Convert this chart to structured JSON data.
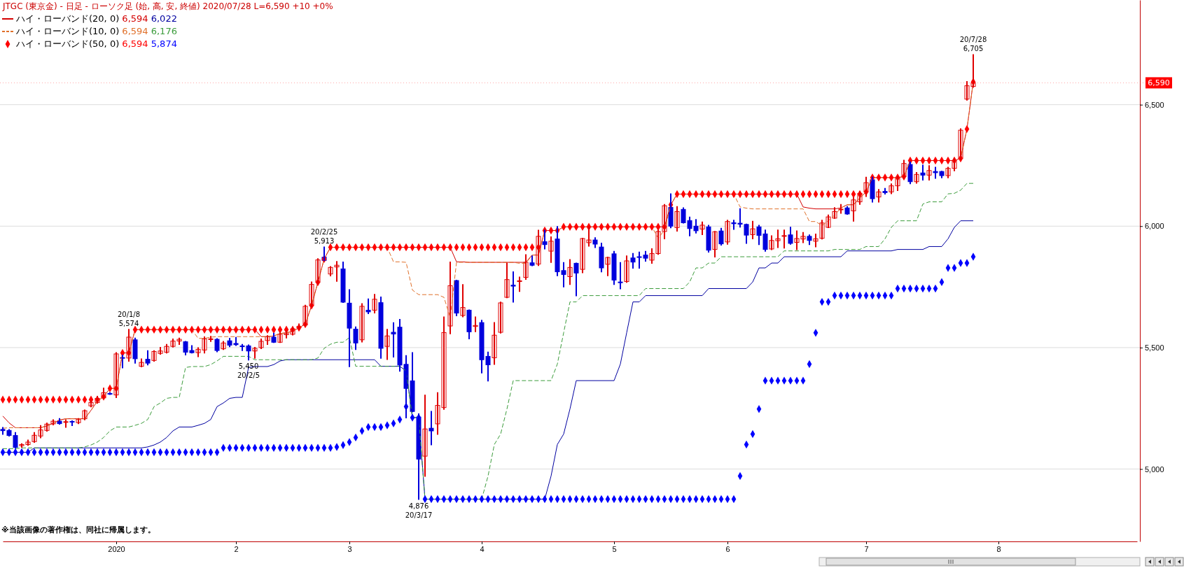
{
  "chart_data": {
    "type": "candlestick",
    "title": "JTGC (東京金) - 日足 - ローソク足 (始, 高, 安, 終値)  2020/07/28 L=6,590 +10  +0%",
    "categories": [
      null,
      null,
      null,
      null,
      null,
      null,
      null,
      null,
      null,
      null,
      null,
      null,
      null,
      null,
      null,
      null,
      null,
      null,
      "2020",
      null,
      null,
      null,
      null,
      null,
      null,
      null,
      null,
      null,
      null,
      null,
      null,
      null,
      null,
      null,
      null,
      null,
      null,
      "2",
      null,
      null,
      null,
      null,
      null,
      null,
      null,
      null,
      null,
      null,
      null,
      null,
      null,
      null,
      null,
      null,
      null,
      "3",
      null,
      null,
      null,
      null,
      null,
      null,
      null,
      null,
      null,
      null,
      null,
      null,
      null,
      null,
      null,
      null,
      null,
      null,
      null,
      null,
      "4",
      null,
      null,
      null,
      null,
      null,
      null,
      null,
      null,
      null,
      null,
      null,
      null,
      null,
      null,
      null,
      null,
      null,
      null,
      null,
      null,
      "5",
      null,
      null,
      null,
      null,
      null,
      null,
      null,
      null,
      null,
      null,
      null,
      null,
      null,
      null,
      null,
      null,
      null,
      "6",
      null,
      null,
      null,
      null,
      null,
      null,
      null,
      null,
      null,
      null,
      null,
      null,
      null,
      null,
      null,
      null,
      null,
      null,
      null,
      null,
      null,
      "7",
      null,
      null,
      null,
      null,
      null,
      null,
      null,
      null,
      null,
      null,
      null,
      null,
      null,
      null,
      null,
      null,
      null,
      null,
      null,
      null,
      "8",
      null,
      null,
      null,
      null,
      null,
      null,
      null,
      null,
      null,
      null,
      null,
      null,
      null,
      null,
      null,
      null,
      null,
      null,
      null,
      null,
      null,
      null
    ],
    "ohlc": [
      [
        5163,
        5170,
        5144,
        5158
      ],
      [
        5159,
        5161,
        5137,
        5138
      ],
      [
        5138,
        5149,
        5087,
        5089
      ],
      [
        5096,
        5103,
        5091,
        5101
      ],
      [
        5101,
        5118,
        5099,
        5111
      ],
      [
        5113,
        5149,
        5111,
        5139
      ],
      [
        5136,
        5178,
        5130,
        5161
      ],
      [
        5159,
        5188,
        5157,
        5185
      ],
      [
        5186,
        5202,
        5183,
        5197
      ],
      [
        5197,
        5207,
        5186,
        5187
      ],
      [
        5193,
        5202,
        5173,
        5195
      ],
      [
        5196,
        5197,
        5180,
        5195
      ],
      [
        5191,
        5207,
        5188,
        5205
      ],
      [
        5207,
        5242,
        5204,
        5240
      ],
      [
        5260,
        5279,
        5257,
        5274
      ],
      [
        5274,
        5298,
        5272,
        5291
      ],
      [
        5293,
        5332,
        5291,
        5314
      ],
      [
        5311,
        5313,
        5308,
        5309
      ],
      [
        5305,
        5478,
        5295,
        5474
      ],
      [
        5459,
        5468,
        5418,
        5456
      ],
      [
        5457,
        5574,
        5445,
        5543
      ],
      [
        5532,
        5538,
        5437,
        5454
      ],
      [
        5423,
        5452,
        5422,
        5439
      ],
      [
        5452,
        5486,
        5430,
        5436
      ],
      [
        5447,
        5486,
        5445,
        5484
      ],
      [
        5476,
        5500,
        5474,
        5486
      ],
      [
        5481,
        5512,
        5479,
        5505
      ],
      [
        5505,
        5534,
        5503,
        5527
      ],
      [
        5527,
        5538,
        5514,
        5534
      ],
      [
        5524,
        5524,
        5471,
        5481
      ],
      [
        5488,
        5507,
        5479,
        5479
      ],
      [
        5479,
        5498,
        5464,
        5493
      ],
      [
        5490,
        5543,
        5479,
        5536
      ],
      [
        5534,
        5545,
        5526,
        5536
      ],
      [
        5534,
        5536,
        5484,
        5488
      ],
      [
        5495,
        5524,
        5493,
        5519
      ],
      [
        5528,
        5537,
        5505,
        5510
      ],
      [
        5517,
        5541,
        5510,
        5512
      ],
      [
        5507,
        5512,
        5489,
        5505
      ],
      [
        5507,
        5510,
        5450,
        5486
      ],
      [
        5486,
        5500,
        5457,
        5497
      ],
      [
        5500,
        5534,
        5497,
        5526
      ],
      [
        5529,
        5548,
        5514,
        5545
      ],
      [
        5543,
        5558,
        5522,
        5522
      ],
      [
        5522,
        5561,
        5522,
        5555
      ],
      [
        5553,
        5567,
        5541,
        5558
      ],
      [
        5555,
        5582,
        5553,
        5577
      ],
      [
        5582,
        5596,
        5577,
        5587
      ],
      [
        5593,
        5673,
        5591,
        5670
      ],
      [
        5673,
        5769,
        5668,
        5760
      ],
      [
        5769,
        5865,
        5764,
        5861
      ],
      [
        5872,
        5913,
        5859,
        5859
      ],
      [
        5803,
        5832,
        5796,
        5830
      ],
      [
        5832,
        5853,
        5774,
        5839
      ],
      [
        5824,
        5851,
        5687,
        5687
      ],
      [
        5683,
        5737,
        5423,
        5580
      ],
      [
        5576,
        5584,
        5493,
        5519
      ],
      [
        5532,
        5680,
        5524,
        5670
      ],
      [
        5654,
        5699,
        5641,
        5647
      ],
      [
        5654,
        5718,
        5644,
        5699
      ],
      [
        5685,
        5707,
        5457,
        5497
      ],
      [
        5505,
        5574,
        5452,
        5548
      ],
      [
        5563,
        5601,
        5462,
        5556
      ],
      [
        5584,
        5615,
        5404,
        5428
      ],
      [
        5431,
        5466,
        5212,
        5332
      ],
      [
        5363,
        5478,
        5237,
        5237
      ],
      [
        5214,
        5226,
        4876,
        5041
      ],
      [
        5053,
        5303,
        4971,
        5165
      ],
      [
        5168,
        5236,
        5101,
        5157
      ],
      [
        5186,
        5313,
        5144,
        5262
      ],
      [
        5253,
        5625,
        5247,
        5562
      ],
      [
        5589,
        5851,
        5558,
        5755
      ],
      [
        5776,
        5776,
        5632,
        5642
      ],
      [
        5632,
        5758,
        5628,
        5665
      ],
      [
        5654,
        5654,
        5537,
        5565
      ],
      [
        5587,
        5625,
        5567,
        5591
      ],
      [
        5603,
        5611,
        5397,
        5450
      ],
      [
        5464,
        5480,
        5364,
        5429
      ],
      [
        5458,
        5602,
        5432,
        5551
      ],
      [
        5563,
        5686,
        5561,
        5684
      ],
      [
        5707,
        5847,
        5706,
        5780
      ],
      [
        5757,
        5811,
        5688,
        5753
      ],
      [
        5772,
        5789,
        5732,
        5775
      ],
      [
        5789,
        5881,
        5782,
        5851
      ],
      [
        5849,
        5876,
        5838,
        5839
      ],
      [
        5844,
        5982,
        5839,
        5958
      ],
      [
        5936,
        5982,
        5907,
        5924
      ],
      [
        5897,
        5955,
        5852,
        5938
      ],
      [
        5947,
        5997,
        5797,
        5812
      ],
      [
        5817,
        5849,
        5751,
        5801
      ],
      [
        5792,
        5861,
        5761,
        5830
      ],
      [
        5847,
        5847,
        5714,
        5807
      ],
      [
        5822,
        5949,
        5809,
        5949
      ],
      [
        5932,
        5997,
        5919,
        5943
      ],
      [
        5943,
        5951,
        5913,
        5926
      ],
      [
        5914,
        5929,
        5813,
        5828
      ],
      [
        5843,
        5871,
        5797,
        5871
      ],
      [
        5886,
        5895,
        5761,
        5778
      ],
      [
        5770,
        5849,
        5743,
        5768
      ],
      [
        5772,
        5876,
        5770,
        5857
      ],
      [
        5869,
        5886,
        5828,
        5852
      ],
      [
        5874,
        5892,
        5828,
        5872
      ],
      [
        5881,
        5895,
        5857,
        5868
      ],
      [
        5860,
        5906,
        5848,
        5887
      ],
      [
        5887,
        5983,
        5885,
        5978
      ],
      [
        5978,
        6088,
        5949,
        6084
      ],
      [
        6077,
        6132,
        5994,
        6000
      ],
      [
        5994,
        6079,
        5981,
        6060
      ],
      [
        6069,
        6074,
        6014,
        6014
      ],
      [
        6023,
        6036,
        5961,
        5990
      ],
      [
        6000,
        6026,
        5973,
        5981
      ],
      [
        5988,
        6016,
        5966,
        6004
      ],
      [
        5997,
        6002,
        5894,
        5901
      ],
      [
        5904,
        5977,
        5874,
        5977
      ],
      [
        5980,
        5990,
        5923,
        5927
      ],
      [
        5935,
        6023,
        5927,
        6019
      ],
      [
        6014,
        6023,
        5988,
        6010
      ],
      [
        6012,
        6071,
        5997,
        6008
      ],
      [
        6007,
        6007,
        5930,
        5963
      ],
      [
        5965,
        6019,
        5949,
        5989
      ],
      [
        5997,
        6002,
        5925,
        5962
      ],
      [
        5968,
        5983,
        5898,
        5904
      ],
      [
        5906,
        5959,
        5904,
        5941
      ],
      [
        5940,
        5983,
        5913,
        5948
      ],
      [
        5958,
        5983,
        5911,
        5961
      ],
      [
        5964,
        5994,
        5927,
        5929
      ],
      [
        5933,
        5979,
        5904,
        5949
      ],
      [
        5947,
        5973,
        5933,
        5958
      ],
      [
        5958,
        5963,
        5925,
        5941
      ],
      [
        5938,
        5966,
        5916,
        5948
      ],
      [
        5950,
        6023,
        5948,
        6013
      ],
      [
        5995,
        6045,
        5995,
        6038
      ],
      [
        6033,
        6075,
        6033,
        6060
      ],
      [
        6068,
        6088,
        6054,
        6070
      ],
      [
        6075,
        6079,
        6050,
        6050
      ],
      [
        6063,
        6116,
        6022,
        6108
      ],
      [
        6100,
        6141,
        6091,
        6135
      ],
      [
        6141,
        6200,
        6123,
        6179
      ],
      [
        6191,
        6200,
        6100,
        6113
      ],
      [
        6120,
        6150,
        6100,
        6141
      ],
      [
        6143,
        6154,
        6133,
        6138
      ],
      [
        6141,
        6173,
        6135,
        6166
      ],
      [
        6166,
        6204,
        6148,
        6198
      ],
      [
        6204,
        6270,
        6198,
        6258
      ],
      [
        6254,
        6263,
        6176,
        6183
      ],
      [
        6183,
        6220,
        6178,
        6213
      ],
      [
        6219,
        6250,
        6191,
        6210
      ],
      [
        6210,
        6248,
        6191,
        6229
      ],
      [
        6225,
        6241,
        6198,
        6220
      ],
      [
        6225,
        6225,
        6200,
        6208
      ],
      [
        6208,
        6241,
        6200,
        6238
      ],
      [
        6238,
        6279,
        6229,
        6270
      ],
      [
        6279,
        6400,
        6275,
        6395
      ],
      [
        6523,
        6594,
        6520,
        6578
      ],
      [
        6575,
        6705,
        6573,
        6590
      ],
      null,
      null,
      null,
      null,
      null,
      null,
      null,
      null,
      null,
      null,
      null,
      null,
      null,
      null,
      null,
      null,
      null,
      null,
      null,
      null,
      null,
      null,
      null,
      null,
      null,
      null
    ],
    "series": [
      {
        "name": "ハイ・ローバンド(20, 0)",
        "type": "line",
        "line_style": "solid",
        "color": "#d40000",
        "values": [
          5218,
          5190,
          5170,
          5170,
          5170,
          5170,
          5170,
          5178,
          5188,
          5202,
          5207,
          5207,
          5207,
          5207,
          5242,
          5279,
          5298,
          5332,
          5332,
          5478,
          5478,
          5574,
          5574,
          5574,
          5574,
          5574,
          5574,
          5574,
          5574,
          5574,
          5574,
          5574,
          5574,
          5574,
          5574,
          5574,
          5574,
          5574,
          5574,
          5574,
          5574,
          5545,
          5545,
          5548,
          5558,
          5561,
          5567,
          5582,
          5596,
          5673,
          5769,
          5865,
          5913,
          5913,
          5913,
          5913,
          5913,
          5913,
          5913,
          5913,
          5913,
          5913,
          5913,
          5913,
          5913,
          5913,
          5913,
          5913,
          5913,
          5913,
          5913,
          5913,
          5853,
          5853,
          5851,
          5851,
          5851,
          5851,
          5851,
          5851,
          5851,
          5851,
          5851,
          5851,
          5881,
          5881,
          5982,
          5982,
          5982,
          5997,
          5997,
          5997,
          5997,
          5997,
          5997,
          5997,
          5997,
          5997,
          5997,
          5997,
          5997,
          5997,
          5997,
          5997,
          5997,
          5997,
          6088,
          6132,
          6132,
          6132,
          6132,
          6132,
          6132,
          6132,
          6132,
          6132,
          6132,
          6132,
          6132,
          6132,
          6132,
          6132,
          6132,
          6132,
          6132,
          6132,
          6132,
          6079,
          6074,
          6071,
          6071,
          6071,
          6071,
          6075,
          6088,
          6088,
          6116,
          6141,
          6200,
          6200,
          6200,
          6200,
          6200,
          6204,
          6270,
          6270,
          6270,
          6270,
          6270,
          6270,
          6270,
          6270,
          6279,
          6400,
          6594,
          null,
          null,
          null,
          null,
          null,
          null,
          null,
          null,
          null,
          null,
          null,
          null,
          null,
          null,
          null,
          null,
          null,
          null,
          null,
          null,
          null,
          null,
          null,
          null,
          null,
          null
        ]
      },
      {
        "type": "line",
        "line_style": "solid",
        "color": "#0000a0",
        "values": [
          5069,
          5069,
          5069,
          5069,
          5069,
          5087,
          5087,
          5087,
          5087,
          5087,
          5087,
          5087,
          5087,
          5087,
          5087,
          5087,
          5087,
          5087,
          5087,
          5087,
          5087,
          5087,
          5087,
          5091,
          5099,
          5111,
          5130,
          5157,
          5173,
          5173,
          5173,
          5180,
          5188,
          5204,
          5257,
          5272,
          5291,
          5295,
          5295,
          5418,
          5422,
          5422,
          5422,
          5430,
          5445,
          5450,
          5450,
          5450,
          5450,
          5450,
          5450,
          5450,
          5450,
          5450,
          5450,
          5450,
          5450,
          5450,
          5450,
          5450,
          5423,
          5423,
          5423,
          5423,
          5404,
          5212,
          5212,
          4876,
          4876,
          4876,
          4876,
          4876,
          4876,
          4876,
          4876,
          4876,
          4876,
          4876,
          4876,
          4876,
          4876,
          4876,
          4876,
          4876,
          4876,
          4876,
          4876,
          4971,
          5101,
          5144,
          5247,
          5364,
          5364,
          5364,
          5364,
          5364,
          5364,
          5364,
          5432,
          5561,
          5688,
          5688,
          5714,
          5714,
          5714,
          5714,
          5714,
          5714,
          5714,
          5714,
          5714,
          5714,
          5743,
          5743,
          5743,
          5743,
          5743,
          5743,
          5743,
          5770,
          5828,
          5828,
          5848,
          5848,
          5874,
          5874,
          5874,
          5874,
          5874,
          5874,
          5874,
          5874,
          5874,
          5874,
          5898,
          5898,
          5898,
          5898,
          5898,
          5898,
          5898,
          5898,
          5904,
          5904,
          5904,
          5904,
          5904,
          5916,
          5916,
          5916,
          5948,
          5995,
          6022,
          6022,
          6022,
          null,
          null,
          null,
          null,
          null,
          null,
          null,
          null,
          null,
          null,
          null,
          null,
          null,
          null,
          null,
          null,
          null,
          null,
          null,
          null,
          null,
          null,
          null,
          null,
          null,
          null
        ]
      },
      {
        "name": "ハイ・ローバンド(10, 0)",
        "type": "line",
        "line_style": "dashed",
        "color": "#e0702a",
        "values": [
          5168,
          5170,
          5170,
          5170,
          5170,
          5170,
          5170,
          5178,
          5188,
          5202,
          5207,
          5207,
          5207,
          5207,
          5242,
          5279,
          5298,
          5332,
          5332,
          5478,
          5478,
          5574,
          5574,
          5574,
          5574,
          5574,
          5574,
          5574,
          5574,
          5574,
          5574,
          5538,
          5538,
          5543,
          5545,
          5545,
          5545,
          5545,
          5545,
          5545,
          5545,
          5545,
          5545,
          5548,
          5558,
          5561,
          5567,
          5582,
          5596,
          5673,
          5769,
          5865,
          5913,
          5913,
          5913,
          5913,
          5913,
          5913,
          5913,
          5913,
          5913,
          5913,
          5853,
          5853,
          5851,
          5737,
          5718,
          5718,
          5718,
          5718,
          5707,
          5625,
          5851,
          5851,
          5851,
          5851,
          5851,
          5851,
          5851,
          5851,
          5851,
          5851,
          5847,
          5847,
          5881,
          5881,
          5982,
          5982,
          5982,
          5997,
          5997,
          5997,
          5997,
          5997,
          5997,
          5997,
          5997,
          5997,
          5997,
          5997,
          5997,
          5997,
          5997,
          5997,
          5951,
          5983,
          6088,
          6132,
          6132,
          6132,
          6132,
          6132,
          6132,
          6132,
          6132,
          6132,
          6132,
          6079,
          6074,
          6071,
          6071,
          6071,
          6071,
          6071,
          6071,
          6071,
          6071,
          6071,
          6019,
          6019,
          6002,
          6023,
          6045,
          6075,
          6088,
          6088,
          6116,
          6141,
          6200,
          6200,
          6200,
          6200,
          6200,
          6204,
          6270,
          6270,
          6270,
          6270,
          6270,
          6270,
          6270,
          6270,
          6279,
          6400,
          6594,
          null,
          null,
          null,
          null,
          null,
          null,
          null,
          null,
          null,
          null,
          null,
          null,
          null,
          null,
          null,
          null,
          null,
          null,
          null,
          null,
          null,
          null,
          null,
          null,
          null,
          null
        ]
      },
      {
        "type": "line",
        "line_style": "dashed",
        "color": "#3c9c3c",
        "values": [
          5084,
          5084,
          5084,
          5087,
          5087,
          5087,
          5087,
          5087,
          5087,
          5087,
          5087,
          5087,
          5087,
          5091,
          5099,
          5111,
          5130,
          5157,
          5173,
          5173,
          5173,
          5180,
          5188,
          5204,
          5257,
          5272,
          5291,
          5295,
          5295,
          5418,
          5422,
          5422,
          5422,
          5430,
          5445,
          5464,
          5464,
          5464,
          5464,
          5464,
          5450,
          5450,
          5450,
          5450,
          5450,
          5450,
          5450,
          5450,
          5450,
          5450,
          5457,
          5497,
          5514,
          5522,
          5522,
          5541,
          5423,
          5423,
          5423,
          5423,
          5423,
          5423,
          5423,
          5423,
          5404,
          5212,
          5212,
          4876,
          4876,
          4876,
          4876,
          4876,
          4876,
          4876,
          4876,
          4876,
          4876,
          4971,
          5101,
          5144,
          5247,
          5364,
          5364,
          5364,
          5364,
          5364,
          5364,
          5364,
          5432,
          5561,
          5688,
          5688,
          5714,
          5714,
          5714,
          5714,
          5714,
          5714,
          5714,
          5714,
          5714,
          5714,
          5743,
          5743,
          5743,
          5743,
          5743,
          5743,
          5743,
          5770,
          5828,
          5828,
          5848,
          5848,
          5874,
          5874,
          5874,
          5874,
          5874,
          5874,
          5874,
          5874,
          5874,
          5874,
          5898,
          5898,
          5898,
          5898,
          5898,
          5898,
          5898,
          5898,
          5904,
          5904,
          5904,
          5904,
          5904,
          5916,
          5916,
          5916,
          5948,
          5995,
          6022,
          6022,
          6022,
          6022,
          6091,
          6100,
          6100,
          6100,
          6133,
          6135,
          6148,
          6176,
          6176,
          null,
          null,
          null,
          null,
          null,
          null,
          null,
          null,
          null,
          null,
          null,
          null,
          null,
          null,
          null,
          null,
          null,
          null,
          null,
          null,
          null,
          null,
          null,
          null,
          null,
          null
        ]
      },
      {
        "name": "ハイ・ローバンド(50, 0)",
        "type": "scatter",
        "marker": "diamond",
        "color": "#ff0000",
        "values": [
          5286,
          5286,
          5286,
          5286,
          5286,
          5286,
          5286,
          5286,
          5286,
          5286,
          5286,
          5286,
          5286,
          5286,
          5286,
          5286,
          5298,
          5332,
          5332,
          5478,
          5478,
          5574,
          5574,
          5574,
          5574,
          5574,
          5574,
          5574,
          5574,
          5574,
          5574,
          5574,
          5574,
          5574,
          5574,
          5574,
          5574,
          5574,
          5574,
          5574,
          5574,
          5574,
          5574,
          5574,
          5574,
          5574,
          5574,
          5582,
          5596,
          5673,
          5769,
          5865,
          5913,
          5913,
          5913,
          5913,
          5913,
          5913,
          5913,
          5913,
          5913,
          5913,
          5913,
          5913,
          5913,
          5913,
          5913,
          5913,
          5913,
          5913,
          5913,
          5913,
          5913,
          5913,
          5913,
          5913,
          5913,
          5913,
          5913,
          5913,
          5913,
          5913,
          5913,
          5913,
          5913,
          5913,
          5982,
          5982,
          5982,
          5997,
          5997,
          5997,
          5997,
          5997,
          5997,
          5997,
          5997,
          5997,
          5997,
          5997,
          5997,
          5997,
          5997,
          5997,
          5997,
          5997,
          6088,
          6132,
          6132,
          6132,
          6132,
          6132,
          6132,
          6132,
          6132,
          6132,
          6132,
          6132,
          6132,
          6132,
          6132,
          6132,
          6132,
          6132,
          6132,
          6132,
          6132,
          6132,
          6132,
          6132,
          6132,
          6132,
          6132,
          6132,
          6132,
          6132,
          6132,
          6141,
          6200,
          6200,
          6200,
          6200,
          6200,
          6204,
          6270,
          6270,
          6270,
          6270,
          6270,
          6270,
          6270,
          6270,
          6279,
          6400,
          6594,
          null,
          null,
          null,
          null,
          null,
          null,
          null,
          null,
          null,
          null,
          null,
          null,
          null,
          null,
          null,
          null,
          null,
          null,
          null,
          null,
          null,
          null,
          null,
          null,
          null,
          null
        ]
      },
      {
        "type": "scatter",
        "marker": "diamond",
        "color": "#0000ff",
        "values": [
          5069,
          5069,
          5069,
          5069,
          5069,
          5069,
          5069,
          5069,
          5069,
          5069,
          5069,
          5069,
          5069,
          5069,
          5069,
          5069,
          5069,
          5069,
          5069,
          5069,
          5069,
          5069,
          5069,
          5069,
          5069,
          5069,
          5069,
          5069,
          5069,
          5069,
          5069,
          5069,
          5069,
          5069,
          5069,
          5087,
          5087,
          5087,
          5087,
          5087,
          5087,
          5087,
          5087,
          5087,
          5087,
          5087,
          5087,
          5087,
          5087,
          5087,
          5087,
          5087,
          5087,
          5091,
          5099,
          5111,
          5130,
          5157,
          5173,
          5173,
          5173,
          5180,
          5188,
          5204,
          5257,
          5212,
          5212,
          4876,
          4876,
          4876,
          4876,
          4876,
          4876,
          4876,
          4876,
          4876,
          4876,
          4876,
          4876,
          4876,
          4876,
          4876,
          4876,
          4876,
          4876,
          4876,
          4876,
          4876,
          4876,
          4876,
          4876,
          4876,
          4876,
          4876,
          4876,
          4876,
          4876,
          4876,
          4876,
          4876,
          4876,
          4876,
          4876,
          4876,
          4876,
          4876,
          4876,
          4876,
          4876,
          4876,
          4876,
          4876,
          4876,
          4876,
          4876,
          4876,
          4876,
          4971,
          5101,
          5144,
          5247,
          5364,
          5364,
          5364,
          5364,
          5364,
          5364,
          5364,
          5432,
          5561,
          5688,
          5688,
          5714,
          5714,
          5714,
          5714,
          5714,
          5714,
          5714,
          5714,
          5714,
          5714,
          5743,
          5743,
          5743,
          5743,
          5743,
          5743,
          5743,
          5770,
          5828,
          5828,
          5848,
          5848,
          5874,
          null,
          null,
          null,
          null,
          null,
          null,
          null,
          null,
          null,
          null,
          null,
          null,
          null,
          null,
          null,
          null,
          null,
          null,
          null,
          null,
          null,
          null,
          null,
          null,
          null,
          null
        ]
      }
    ],
    "ylim": [
      4702,
      6931
    ],
    "yticks": [
      {
        "value": 5000,
        "label": "5,000"
      },
      {
        "value": 5500,
        "label": "5,500"
      },
      {
        "value": 6000,
        "label": "6,000"
      },
      {
        "value": 6500,
        "label": "6,500"
      }
    ],
    "grid": "y",
    "legend": "top left",
    "ref_lines": [
      {
        "axis": "y",
        "value": 6590,
        "label": "6,590",
        "color": "#ff0000"
      }
    ],
    "annotations": [
      "6,594",
      "6,022",
      "6,594",
      "6,176",
      "6,594",
      "5,874",
      {
        "text": "20/1/8",
        "y": 5574
      },
      {
        "text": "5,574",
        "y": 5574
      },
      {
        "text": "20/2/25",
        "y": 5913
      },
      {
        "text": "5,913",
        "y": 5913
      },
      {
        "text": "5,450",
        "y": 5450
      },
      {
        "text": "20/2/5",
        "y": 5450
      },
      {
        "text": "4,876",
        "y": 4876
      },
      {
        "text": "20/3/17",
        "y": 4876
      },
      {
        "text": "20/7/28",
        "y": 6705
      },
      {
        "text": "6,705",
        "y": 6705
      },
      "※当該画像の著作権は、同社に帰属します。"
    ]
  }
}
